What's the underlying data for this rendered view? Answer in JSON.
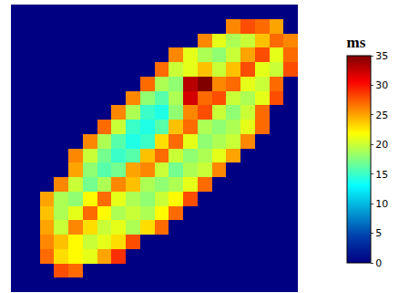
{
  "chart_data": {
    "type": "heatmap",
    "colorbar_title": "ms",
    "color": "Jet",
    "tick_labels": false,
    "zlim": [
      0,
      35
    ],
    "colorbar_ticks": [
      0,
      5,
      10,
      15,
      20,
      25,
      30,
      35
    ],
    "z": [
      [
        0,
        0,
        0,
        0,
        0,
        0,
        0,
        0,
        0,
        0,
        0,
        0,
        0,
        0,
        0,
        0,
        0,
        0,
        0,
        0
      ],
      [
        0,
        0,
        0,
        0,
        0,
        0,
        0,
        0,
        0,
        0,
        0,
        0,
        0,
        0,
        0,
        26,
        28,
        27,
        25,
        0
      ],
      [
        0,
        0,
        0,
        0,
        0,
        0,
        0,
        0,
        0,
        0,
        0,
        0,
        0,
        26,
        21,
        19,
        20,
        24,
        27,
        26
      ],
      [
        0,
        0,
        0,
        0,
        0,
        0,
        0,
        0,
        0,
        0,
        0,
        26,
        21,
        19,
        18,
        20,
        25,
        28,
        21,
        27
      ],
      [
        0,
        0,
        0,
        0,
        0,
        0,
        0,
        0,
        0,
        0,
        27,
        20,
        21,
        24,
        20,
        24,
        28,
        21,
        20,
        28
      ],
      [
        0,
        0,
        0,
        0,
        0,
        0,
        0,
        0,
        0,
        27,
        19,
        18,
        33,
        35,
        26,
        27,
        21,
        20,
        27,
        0
      ],
      [
        0,
        0,
        0,
        0,
        0,
        0,
        0,
        0,
        26,
        18,
        16,
        19,
        32,
        27,
        28,
        20,
        19,
        21,
        28,
        0
      ],
      [
        0,
        0,
        0,
        0,
        0,
        0,
        0,
        26,
        19,
        15,
        14,
        18,
        26,
        28,
        20,
        18,
        20,
        27,
        0,
        0
      ],
      [
        0,
        0,
        0,
        0,
        0,
        0,
        27,
        20,
        15,
        14,
        16,
        24,
        27,
        19,
        18,
        19,
        21,
        27,
        0,
        0
      ],
      [
        0,
        0,
        0,
        0,
        0,
        26,
        19,
        16,
        14,
        15,
        23,
        27,
        21,
        18,
        19,
        20,
        26,
        0,
        0,
        0
      ],
      [
        0,
        0,
        0,
        0,
        26,
        20,
        17,
        15,
        16,
        24,
        27,
        20,
        18,
        19,
        21,
        25,
        0,
        0,
        0,
        0
      ],
      [
        0,
        0,
        0,
        0,
        25,
        18,
        16,
        17,
        25,
        26,
        20,
        17,
        19,
        20,
        26,
        0,
        0,
        0,
        0,
        0
      ],
      [
        0,
        0,
        0,
        26,
        20,
        17,
        19,
        26,
        24,
        19,
        18,
        19,
        21,
        27,
        0,
        0,
        0,
        0,
        0,
        0
      ],
      [
        0,
        0,
        25,
        19,
        18,
        22,
        27,
        21,
        19,
        18,
        20,
        22,
        28,
        0,
        0,
        0,
        0,
        0,
        0,
        0
      ],
      [
        0,
        0,
        24,
        19,
        21,
        27,
        22,
        19,
        20,
        19,
        22,
        27,
        0,
        0,
        0,
        0,
        0,
        0,
        0,
        0
      ],
      [
        0,
        0,
        25,
        20,
        26,
        23,
        20,
        21,
        19,
        23,
        27,
        0,
        0,
        0,
        0,
        0,
        0,
        0,
        0,
        0
      ],
      [
        0,
        0,
        26,
        24,
        22,
        20,
        21,
        23,
        28,
        0,
        0,
        0,
        0,
        0,
        0,
        0,
        0,
        0,
        0,
        0
      ],
      [
        0,
        0,
        27,
        23,
        22,
        21,
        25,
        29,
        0,
        0,
        0,
        0,
        0,
        0,
        0,
        0,
        0,
        0,
        0,
        0
      ],
      [
        0,
        0,
        0,
        28,
        27,
        0,
        0,
        0,
        0,
        0,
        0,
        0,
        0,
        0,
        0,
        0,
        0,
        0,
        0,
        0
      ],
      [
        0,
        0,
        0,
        0,
        0,
        0,
        0,
        0,
        0,
        0,
        0,
        0,
        0,
        0,
        0,
        0,
        0,
        0,
        0,
        0
      ]
    ]
  }
}
